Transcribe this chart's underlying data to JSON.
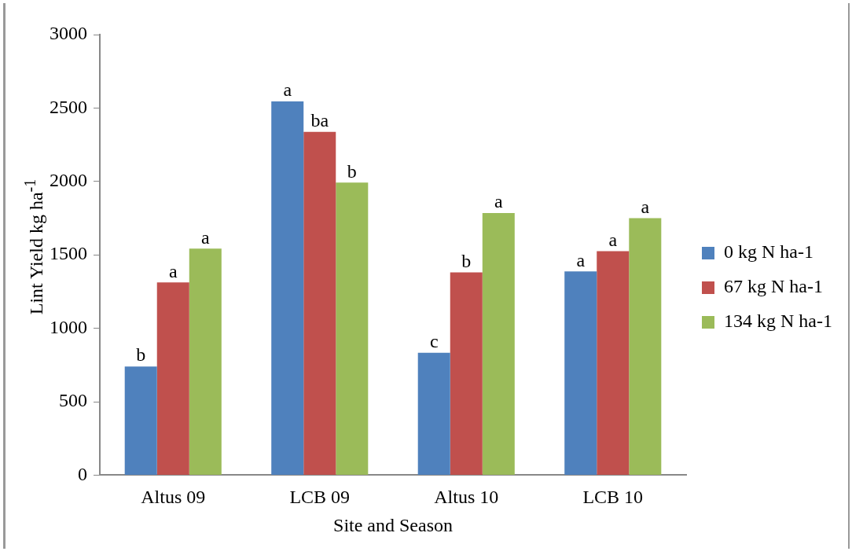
{
  "chart_data": {
    "type": "bar",
    "xlabel": "Site and Season",
    "ylabel": "Lint Yield kg ha$^{-1}$",
    "categories": [
      "Altus 09",
      "LCB 09",
      "Altus 10",
      "LCB 10"
    ],
    "series": [
      {
        "name": "0 kg N ha-1",
        "color": "#4f81bd",
        "values": [
          740,
          2545,
          833,
          1387
        ],
        "value_labels": [
          "b",
          "a",
          "c",
          "a"
        ]
      },
      {
        "name": "67 kg N ha-1",
        "color": "#c0504d",
        "values": [
          1312,
          2338,
          1381,
          1525
        ],
        "value_labels": [
          "a",
          "ba",
          "b",
          "a"
        ]
      },
      {
        "name": "134 kg N ha-1",
        "color": "#9bbb59",
        "values": [
          1542,
          1992,
          1785,
          1750
        ],
        "value_labels": [
          "a",
          "b",
          "a",
          "a"
        ]
      }
    ],
    "ylim": [
      0,
      3000
    ],
    "yticks": [
      0,
      500,
      1000,
      1500,
      2000,
      2500,
      3000
    ],
    "grid": false,
    "legend": "right"
  }
}
